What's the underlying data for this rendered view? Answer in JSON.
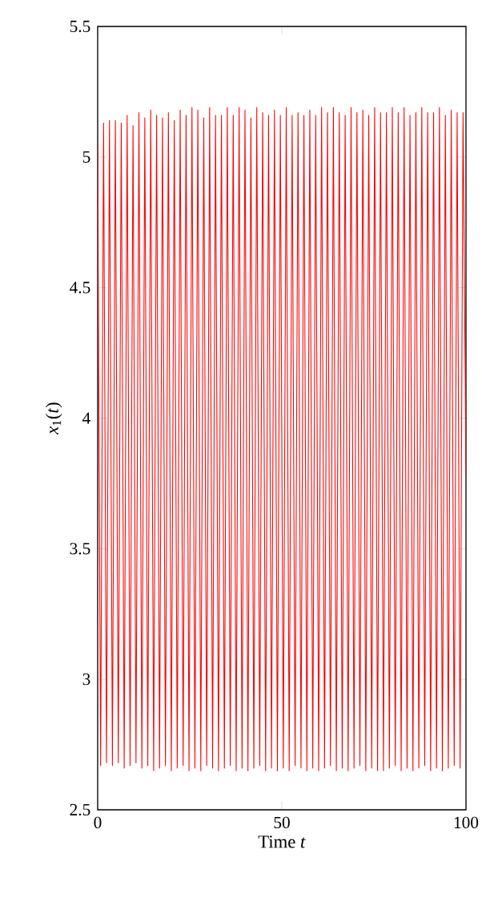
{
  "chart_data": {
    "type": "line",
    "xlabel": "Time *t*",
    "ylabel": "*x*$_{1}$(*t*)",
    "color": "#ff0000",
    "xlim": [
      0,
      100
    ],
    "ylim": [
      2.5,
      5.5
    ],
    "xticks": [
      0,
      50,
      100
    ],
    "yticks": [
      2.5,
      3,
      3.5,
      4,
      4.5,
      5,
      5.5
    ],
    "x": [
      0,
      0.8,
      1.6,
      2.4,
      3.2,
      4,
      4.8,
      5.6,
      6.4,
      7.2,
      8,
      8.8,
      9.6,
      10.4,
      11.2,
      12,
      12.8,
      13.6,
      14.4,
      15.2,
      16,
      16.8,
      17.6,
      18.4,
      19.2,
      20,
      20.8,
      21.6,
      22.4,
      23.2,
      24,
      24.8,
      25.6,
      26.4,
      27.2,
      28,
      28.8,
      29.6,
      30.4,
      31.2,
      32,
      32.8,
      33.6,
      34.4,
      35.2,
      36,
      36.8,
      37.6,
      38.4,
      39.2,
      40,
      40.8,
      41.6,
      42.4,
      43.2,
      44,
      44.8,
      45.6,
      46.4,
      47.2,
      48,
      48.8,
      49.6,
      50.4,
      51.2,
      52,
      52.8,
      53.6,
      54.4,
      55.2,
      56,
      56.8,
      57.6,
      58.4,
      59.2,
      60,
      60.8,
      61.6,
      62.4,
      63.2,
      64,
      64.8,
      65.6,
      66.4,
      67.2,
      68,
      68.8,
      69.6,
      70.4,
      71.2,
      72,
      72.8,
      73.6,
      74.4,
      75.2,
      76,
      76.8,
      77.6,
      78.4,
      79.2,
      80,
      80.8,
      81.6,
      82.4,
      83.2,
      84,
      84.8,
      85.6,
      86.4,
      87.2,
      88,
      88.8,
      89.6,
      90.4,
      91.2,
      92,
      92.8,
      93.6,
      94.4,
      95.2,
      96,
      96.8,
      97.6,
      98.4,
      99.2,
      100
    ],
    "values": [
      5.05,
      2.67,
      5.13,
      2.68,
      5.14,
      2.67,
      5.14,
      2.68,
      5.13,
      2.66,
      5.16,
      2.67,
      5.12,
      2.68,
      5.17,
      2.66,
      5.15,
      2.67,
      5.18,
      2.65,
      5.16,
      2.66,
      5.15,
      2.67,
      5.17,
      2.65,
      5.14,
      2.66,
      5.18,
      2.67,
      5.16,
      2.65,
      5.19,
      2.66,
      5.18,
      2.65,
      5.15,
      2.67,
      5.19,
      2.66,
      5.16,
      2.65,
      5.16,
      2.66,
      5.19,
      2.67,
      5.16,
      2.65,
      5.19,
      2.66,
      5.18,
      2.65,
      5.15,
      2.66,
      5.19,
      2.67,
      5.17,
      2.65,
      5.16,
      2.66,
      5.18,
      2.65,
      5.16,
      2.66,
      5.19,
      2.65,
      5.16,
      2.67,
      5.17,
      2.66,
      5.16,
      2.65,
      5.18,
      2.66,
      5.16,
      2.65,
      5.19,
      2.66,
      5.17,
      2.67,
      5.19,
      2.65,
      5.17,
      2.66,
      5.16,
      2.65,
      5.19,
      2.66,
      5.17,
      2.67,
      5.18,
      2.65,
      5.16,
      2.66,
      5.19,
      2.65,
      5.17,
      2.65,
      5.17,
      2.66,
      5.19,
      2.67,
      5.17,
      2.65,
      5.19,
      2.66,
      5.16,
      2.65,
      5.17,
      2.66,
      5.19,
      2.67,
      5.17,
      2.65,
      5.17,
      2.66,
      5.19,
      2.65,
      5.16,
      2.66,
      5.18,
      2.67,
      5.17,
      2.66,
      5.17,
      3.79
    ]
  }
}
